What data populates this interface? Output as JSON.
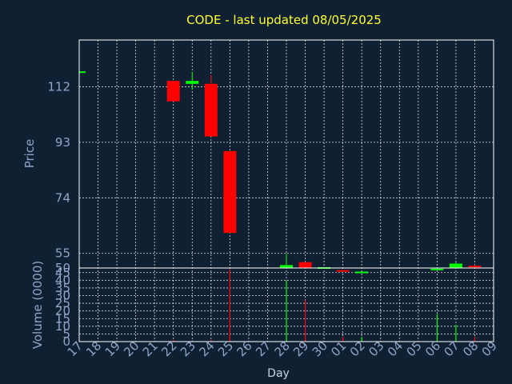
{
  "chart_data": {
    "type": "candlestick",
    "title": "CODE - last updated 08/05/2025",
    "price_axis": {
      "ylabel": "Price",
      "ylim": [
        50,
        128
      ],
      "ticks": [
        50,
        55,
        74,
        93,
        112
      ]
    },
    "volume_axis": {
      "ylabel": "Volume (0000)",
      "ylim": [
        0,
        48
      ],
      "ticks": [
        0,
        5,
        10,
        15,
        20,
        25,
        30,
        35,
        40,
        45
      ]
    },
    "xlabel": "Day",
    "categories": [
      "17",
      "18",
      "19",
      "20",
      "21",
      "22",
      "23",
      "24",
      "25",
      "26",
      "27",
      "28",
      "29",
      "30",
      "01",
      "02",
      "03",
      "04",
      "05",
      "06",
      "07",
      "08",
      "09"
    ],
    "grid": true,
    "colors": {
      "background": "#0f2032",
      "title": "#ffff33",
      "axis_text": "#8fa6c9",
      "up": "#00ff00",
      "down": "#ff0000",
      "grid": "#ffffff"
    },
    "candles": [
      {
        "day": "17",
        "open": 117,
        "high": 117,
        "low": 117,
        "close": 117,
        "volume": 0
      },
      {
        "day": "22",
        "open": 114,
        "high": 114,
        "low": 107,
        "close": 107,
        "volume": 1
      },
      {
        "day": "23",
        "open": 113,
        "high": 117,
        "low": 111,
        "close": 114,
        "volume": 0
      },
      {
        "day": "24",
        "open": 113,
        "high": 116,
        "low": 95,
        "close": 95,
        "volume": 1
      },
      {
        "day": "25",
        "open": 90,
        "high": 90,
        "low": 62,
        "close": 62,
        "volume": 47
      },
      {
        "day": "28",
        "open": 46,
        "high": 55,
        "low": 45,
        "close": 51,
        "volume": 40
      },
      {
        "day": "29",
        "open": 52,
        "high": 52,
        "low": 48,
        "close": 49.5,
        "volume": 27
      },
      {
        "day": "30",
        "open": 50,
        "high": 50,
        "low": 49,
        "close": 50,
        "volume": 0
      },
      {
        "day": "01",
        "open": 49,
        "high": 49,
        "low": 47,
        "close": 47,
        "volume": 3
      },
      {
        "day": "02",
        "open": 48.5,
        "high": 50,
        "low": 47,
        "close": 48.5,
        "volume": 3
      },
      {
        "day": "06",
        "open": 48,
        "high": 50,
        "low": 47,
        "close": 49.5,
        "volume": 18
      },
      {
        "day": "07",
        "open": 49,
        "high": 52,
        "low": 48,
        "close": 51.5,
        "volume": 11
      },
      {
        "day": "08",
        "open": 50.5,
        "high": 51,
        "low": 47.5,
        "close": 47.5,
        "volume": 3
      }
    ]
  }
}
